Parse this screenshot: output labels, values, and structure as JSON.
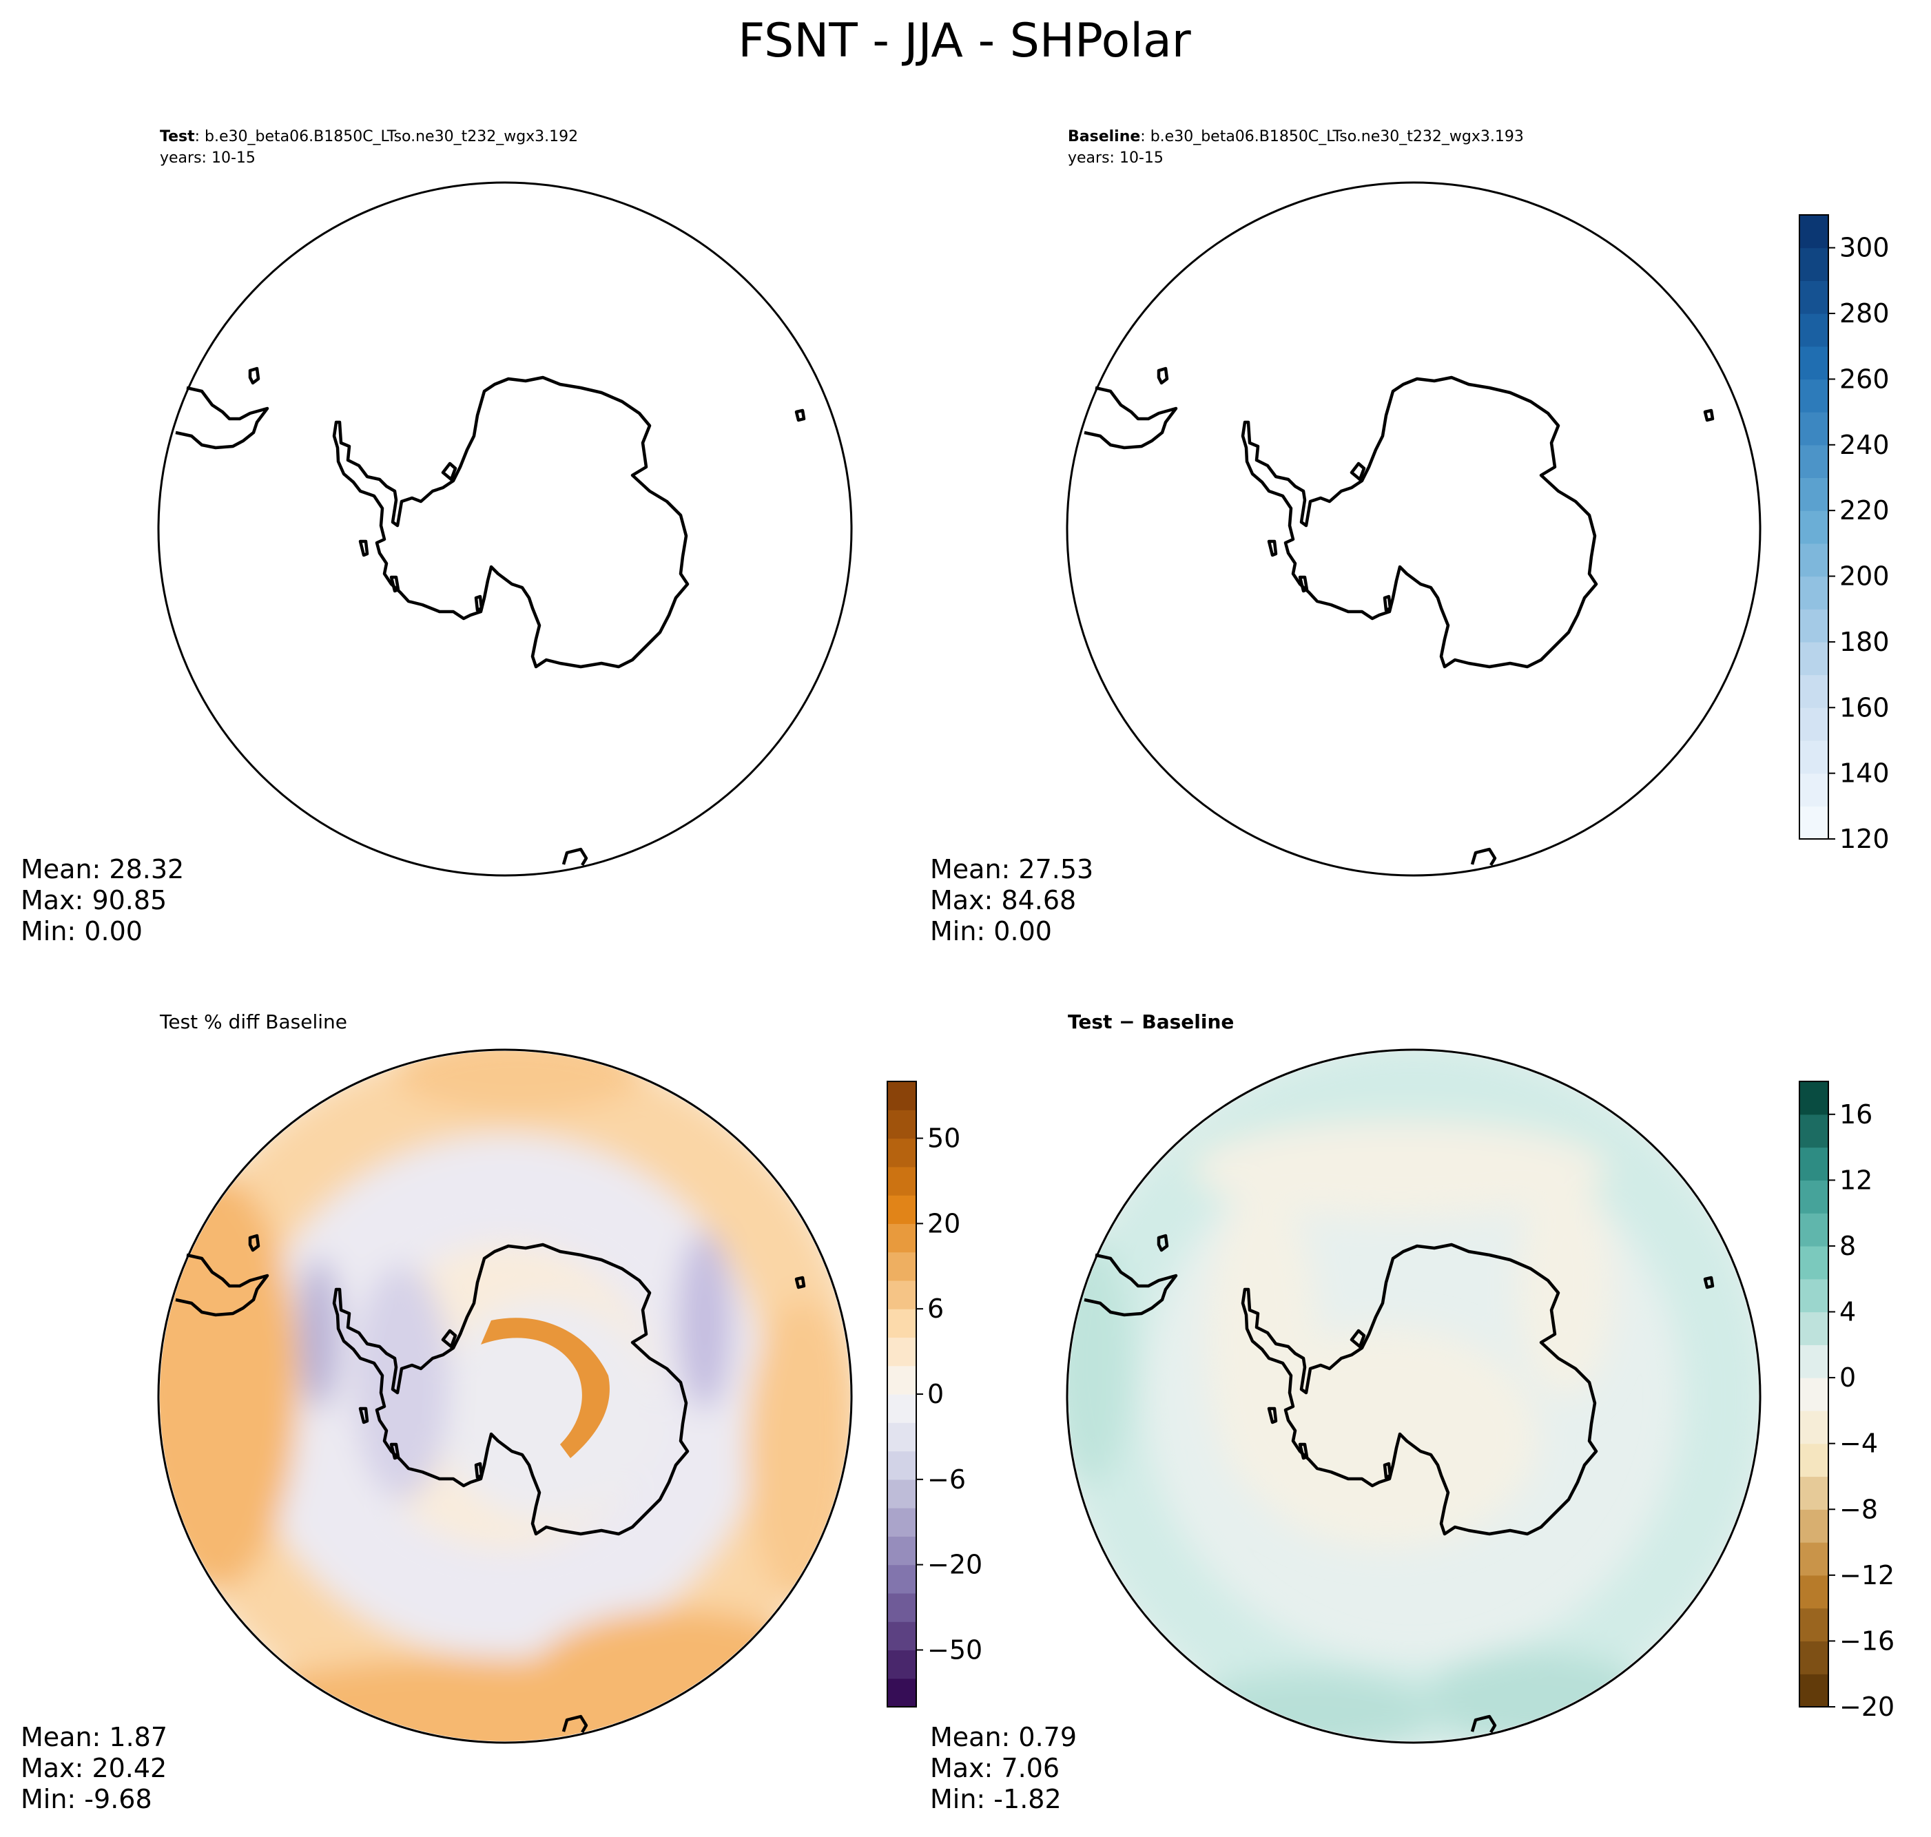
{
  "figure": {
    "title": "FSNT - JJA - SHPolar"
  },
  "chart_data": [
    {
      "type": "heatmap",
      "projection": "south-polar-stereographic",
      "panel": "test",
      "title_prefix": "Test",
      "case_name": ": b.e30_beta06.B1850C_LTso.ne30_t232_wgx3.192",
      "years": "years: 10-15",
      "stats": {
        "mean": "Mean: 28.32",
        "max": "Max: 90.85",
        "min": "Min:  0.00"
      },
      "colormap": "Blues",
      "field_note": "no shading visible (values below colorbar minimum)"
    },
    {
      "type": "heatmap",
      "projection": "south-polar-stereographic",
      "panel": "baseline",
      "title_prefix": "Baseline",
      "case_name": ": b.e30_beta06.B1850C_LTso.ne30_t232_wgx3.193",
      "years": "years: 10-15",
      "stats": {
        "mean": "Mean: 27.53",
        "max": "Max: 84.68",
        "min": "Min:  0.00"
      },
      "colorbar": {
        "colormap": "Blues",
        "range": [
          120,
          310
        ],
        "ticks": [
          "120",
          "140",
          "160",
          "180",
          "200",
          "220",
          "240",
          "260",
          "280",
          "300"
        ],
        "levels": 19
      }
    },
    {
      "type": "heatmap",
      "projection": "south-polar-stereographic",
      "panel": "percent-diff",
      "title": "Test % diff Baseline",
      "stats": {
        "mean": "Mean:  1.87",
        "max": "Max: 20.42",
        "min": "Min: -9.68"
      },
      "colorbar": {
        "colormap": "PuOr_r",
        "ticks": [
          "−50",
          "−20",
          "−6",
          "0",
          "6",
          "20",
          "50"
        ],
        "levels": 22
      }
    },
    {
      "type": "heatmap",
      "projection": "south-polar-stereographic",
      "panel": "difference",
      "title": "Test − Baseline",
      "stats": {
        "mean": "Mean:  0.79",
        "max": "Max:  7.06",
        "min": "Min: -1.82"
      },
      "colorbar": {
        "colormap": "BrBG",
        "range": [
          -20,
          18
        ],
        "ticks": [
          "−20",
          "−16",
          "−12",
          "−8",
          "−4",
          "0",
          "4",
          "8",
          "12",
          "16"
        ],
        "levels": 19
      }
    }
  ]
}
